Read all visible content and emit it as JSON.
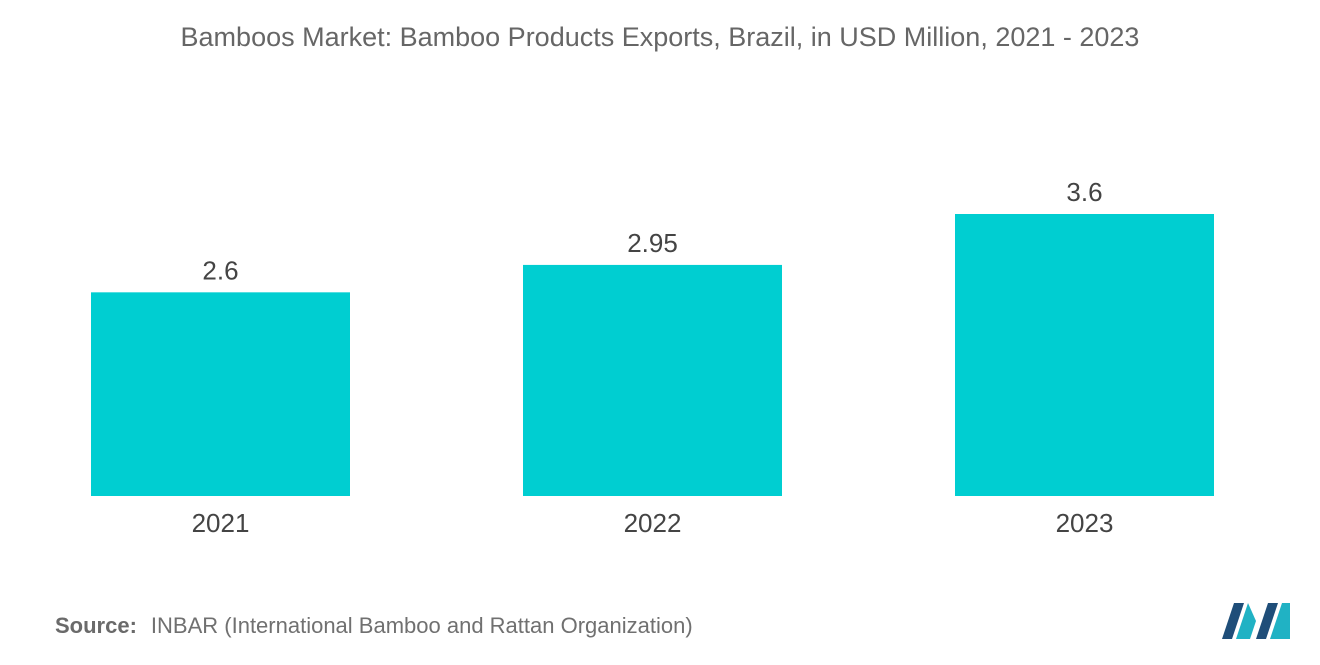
{
  "title": "Bamboos Market: Bamboo Products Exports, Brazil, in USD Million, 2021 - 2023",
  "source": {
    "label": "Source:",
    "text": "INBAR (International Bamboo and Rattan Organization)"
  },
  "colors": {
    "bar": "#00CED1",
    "logo_dark": "#1F4E79",
    "logo_teal": "#20B2C4"
  },
  "chart_data": {
    "type": "bar",
    "title": "Bamboos Market: Bamboo Products Exports, Brazil, in USD Million, 2021 - 2023",
    "categories": [
      "2021",
      "2022",
      "2023"
    ],
    "values": [
      2.6,
      2.95,
      3.6
    ],
    "data_labels": [
      "2.6",
      "2.95",
      "3.6"
    ],
    "xlabel": "",
    "ylabel": "",
    "ylim": [
      0,
      3.6
    ],
    "grid": false,
    "legend": "none",
    "y_axis_visible": false
  }
}
